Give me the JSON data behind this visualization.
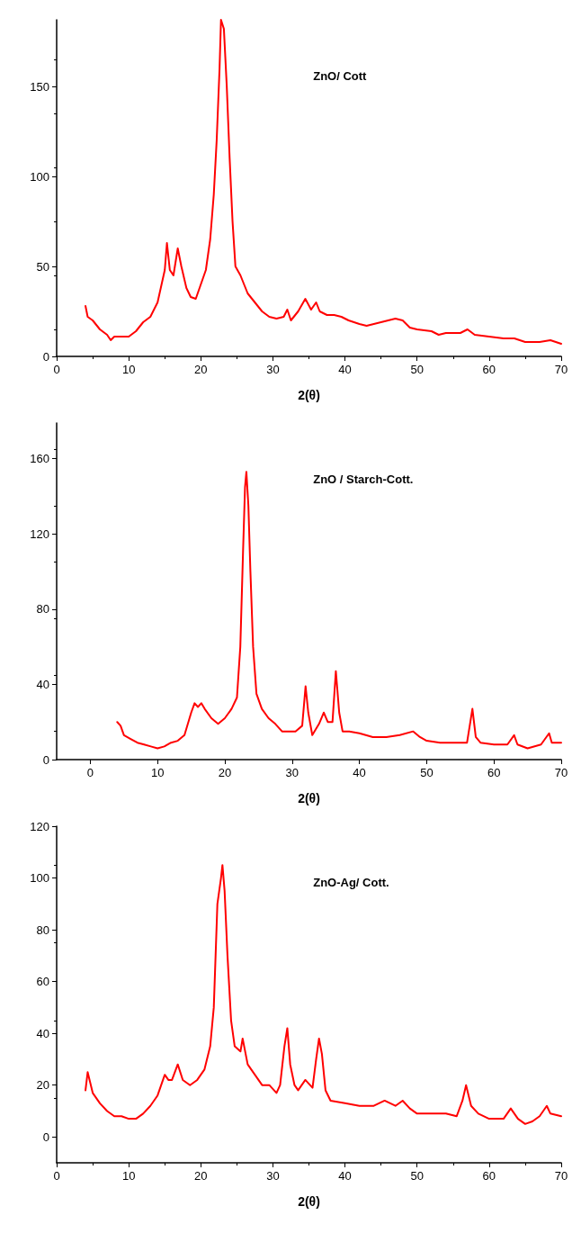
{
  "chart_data": [
    {
      "type": "line",
      "xlabel": "2(θ)",
      "annotations": [
        "ZnO/ Cott"
      ],
      "xlim": [
        0,
        70
      ],
      "xticks": [
        0,
        10,
        20,
        30,
        40,
        50,
        60,
        70
      ],
      "ylim": [
        0,
        187
      ],
      "yticks": [
        0,
        50,
        100,
        150
      ],
      "grid": false,
      "marker": "none",
      "line_style": "solid",
      "x": [
        4,
        4.3,
        5,
        6,
        7,
        7.5,
        8,
        9,
        10,
        11,
        12,
        13,
        14,
        15,
        15.3,
        15.7,
        16.2,
        16.8,
        17.3,
        18,
        18.6,
        19.3,
        20,
        20.7,
        21.3,
        21.8,
        22.2,
        22.6,
        22.8,
        23.2,
        23.6,
        24,
        24.4,
        24.8,
        25.5,
        26.5,
        27.5,
        28.5,
        29.5,
        30.5,
        31.5,
        32,
        32.5,
        33.5,
        34.5,
        35.3,
        36,
        36.5,
        37.5,
        38.5,
        39.5,
        40.5,
        42,
        43,
        44,
        45,
        46,
        47,
        48,
        49,
        50,
        52,
        53,
        54,
        55,
        56,
        57,
        58,
        60,
        62,
        63.5,
        65,
        67,
        68.5,
        70
      ],
      "series": [
        {
          "color": "#ff0000",
          "values": [
            28,
            22,
            20,
            15,
            12,
            9,
            11,
            11,
            11,
            14,
            19,
            22,
            30,
            48,
            63,
            48,
            45,
            60,
            50,
            38,
            33,
            32,
            40,
            48,
            65,
            90,
            120,
            160,
            187,
            182,
            150,
            110,
            75,
            50,
            45,
            35,
            30,
            25,
            22,
            21,
            22,
            26,
            20,
            25,
            32,
            26,
            30,
            25,
            23,
            23,
            22,
            20,
            18,
            17,
            18,
            19,
            20,
            21,
            20,
            16,
            15,
            14,
            12,
            13,
            13,
            13,
            15,
            12,
            11,
            10,
            10,
            8,
            8,
            9,
            7
          ]
        }
      ]
    },
    {
      "type": "line",
      "xlabel": "2(θ)",
      "annotations": [
        "ZnO / Starch-Cott."
      ],
      "xlim": [
        -5,
        70
      ],
      "xticks": [
        0,
        10,
        20,
        30,
        40,
        50,
        60,
        70
      ],
      "ylim": [
        0,
        179
      ],
      "yticks": [
        0,
        40,
        80,
        120,
        160
      ],
      "grid": false,
      "marker": "none",
      "line_style": "solid",
      "x": [
        4,
        4.5,
        5,
        6,
        7,
        8,
        9,
        10,
        11,
        12,
        13,
        14,
        15,
        15.5,
        16,
        16.5,
        17,
        18,
        19,
        20,
        21,
        21.8,
        22.3,
        22.7,
        23,
        23.2,
        23.5,
        23.8,
        24.2,
        24.7,
        25.5,
        26.5,
        27.5,
        28.5,
        29.5,
        30.5,
        31.5,
        32,
        32.4,
        33,
        34,
        34.7,
        35.3,
        36,
        36.5,
        37,
        37.5,
        38.5,
        40,
        42,
        44,
        46,
        48,
        49,
        50,
        52,
        54,
        56,
        56.8,
        57.3,
        58,
        60,
        62,
        63,
        63.5,
        65,
        67,
        68.2,
        68.6,
        70
      ],
      "series": [
        {
          "color": "#ff0000",
          "values": [
            20,
            18,
            13,
            11,
            9,
            8,
            7,
            6,
            7,
            9,
            10,
            13,
            25,
            30,
            28,
            30,
            27,
            22,
            19,
            22,
            27,
            33,
            60,
            110,
            145,
            153,
            135,
            100,
            60,
            35,
            27,
            22,
            19,
            15,
            15,
            15,
            18,
            39,
            25,
            13,
            19,
            25,
            20,
            20,
            47,
            25,
            15,
            15,
            14,
            12,
            12,
            13,
            15,
            12,
            10,
            9,
            9,
            9,
            27,
            12,
            9,
            8,
            8,
            13,
            8,
            6,
            8,
            14,
            9,
            9
          ]
        }
      ]
    },
    {
      "type": "line",
      "xlabel": "2(θ)",
      "annotations": [
        "ZnO-Ag/ Cott."
      ],
      "xlim": [
        0,
        70
      ],
      "xticks": [
        0,
        10,
        20,
        30,
        40,
        50,
        60,
        70
      ],
      "ylim": [
        -10,
        120
      ],
      "yticks": [
        0,
        20,
        40,
        60,
        80,
        100,
        120
      ],
      "grid": false,
      "marker": "none",
      "line_style": "solid",
      "x": [
        4,
        4.3,
        5,
        6,
        7,
        8,
        9,
        10,
        11,
        12,
        13,
        14,
        15,
        15.5,
        16,
        16.8,
        17.5,
        18.5,
        19.5,
        20.5,
        21.3,
        21.8,
        22.3,
        22.8,
        23,
        23.3,
        23.7,
        24.2,
        24.7,
        25.5,
        25.8,
        26.5,
        27.5,
        28.5,
        29.5,
        30.5,
        31,
        31.6,
        32,
        32.4,
        33,
        33.5,
        34.5,
        35.5,
        36,
        36.4,
        36.8,
        37.3,
        38,
        40,
        42,
        44,
        45.5,
        47,
        48,
        49,
        50,
        52,
        54,
        55.5,
        56.3,
        56.8,
        57.5,
        58.5,
        60,
        62,
        63,
        64,
        65,
        66,
        67,
        68,
        68.5,
        70
      ],
      "series": [
        {
          "color": "#ff0000",
          "values": [
            18,
            25,
            17,
            13,
            10,
            8,
            8,
            7,
            7,
            9,
            12,
            16,
            24,
            22,
            22,
            28,
            22,
            20,
            22,
            26,
            35,
            50,
            90,
            100,
            105,
            95,
            70,
            45,
            35,
            33,
            38,
            28,
            24,
            20,
            20,
            17,
            20,
            35,
            42,
            28,
            20,
            18,
            22,
            19,
            30,
            38,
            32,
            18,
            14,
            13,
            12,
            12,
            14,
            12,
            14,
            11,
            9,
            9,
            9,
            8,
            14,
            20,
            12,
            9,
            7,
            7,
            11,
            7,
            5,
            6,
            8,
            12,
            9,
            8
          ]
        }
      ]
    }
  ]
}
